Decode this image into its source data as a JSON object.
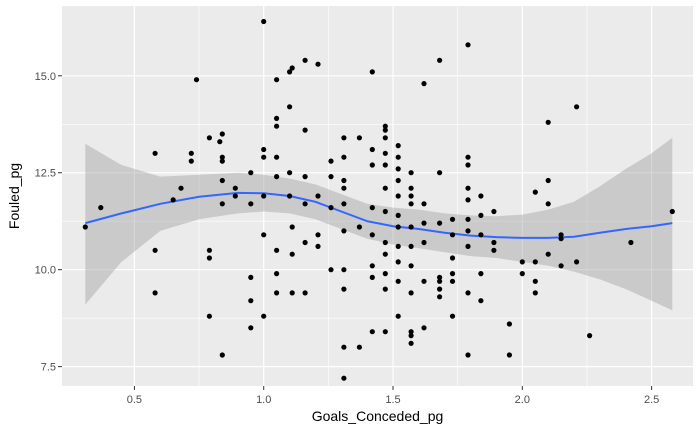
{
  "chart_data": {
    "type": "scatter",
    "title": "",
    "xlabel": "Goals_Conceded_pg",
    "ylabel": "Fouled_pg",
    "xlim": [
      0.22,
      2.66
    ],
    "ylim": [
      7.0,
      16.8
    ],
    "x_ticks": [
      0.5,
      1.0,
      1.5,
      2.0,
      2.5
    ],
    "x_tick_labels": [
      "0.5",
      "1.0",
      "1.5",
      "2.0",
      "2.5"
    ],
    "y_ticks": [
      7.5,
      10.0,
      12.5,
      15.0
    ],
    "y_tick_labels": [
      "7.5",
      "10.0",
      "12.5",
      "15.0"
    ],
    "grid": true,
    "theme": {
      "panel_background": "#ebebeb",
      "grid_major": "#ffffff",
      "point_color": "#000000",
      "smooth_line_color": "#3366ff",
      "ribbon_color": "#999999"
    },
    "series": [
      {
        "points": [
          [
            0.31,
            11.1
          ],
          [
            0.37,
            11.6
          ],
          [
            0.58,
            13.0
          ],
          [
            0.58,
            10.5
          ],
          [
            0.58,
            9.4
          ],
          [
            0.65,
            11.8
          ],
          [
            0.68,
            12.1
          ],
          [
            0.72,
            13.0
          ],
          [
            0.72,
            12.8
          ],
          [
            0.74,
            14.9
          ],
          [
            0.79,
            8.8
          ],
          [
            0.79,
            10.5
          ],
          [
            0.79,
            10.3
          ],
          [
            0.79,
            13.4
          ],
          [
            0.83,
            13.3
          ],
          [
            0.84,
            13.5
          ],
          [
            0.84,
            12.9
          ],
          [
            0.84,
            12.8
          ],
          [
            0.84,
            12.3
          ],
          [
            0.84,
            11.7
          ],
          [
            0.84,
            7.8
          ],
          [
            0.89,
            12.1
          ],
          [
            0.89,
            11.9
          ],
          [
            0.95,
            12.5
          ],
          [
            0.95,
            11.7
          ],
          [
            0.95,
            9.8
          ],
          [
            0.95,
            9.2
          ],
          [
            0.95,
            8.5
          ],
          [
            1.0,
            16.4
          ],
          [
            1.0,
            13.1
          ],
          [
            1.0,
            12.9
          ],
          [
            1.0,
            11.9
          ],
          [
            1.0,
            10.9
          ],
          [
            1.0,
            8.8
          ],
          [
            1.05,
            14.9
          ],
          [
            1.05,
            13.9
          ],
          [
            1.05,
            13.7
          ],
          [
            1.05,
            12.9
          ],
          [
            1.05,
            12.4
          ],
          [
            1.05,
            10.5
          ],
          [
            1.05,
            9.9
          ],
          [
            1.05,
            9.4
          ],
          [
            1.1,
            15.1
          ],
          [
            1.1,
            14.2
          ],
          [
            1.1,
            12.5
          ],
          [
            1.1,
            11.9
          ],
          [
            1.11,
            15.2
          ],
          [
            1.11,
            11.1
          ],
          [
            1.11,
            10.4
          ],
          [
            1.11,
            9.4
          ],
          [
            1.16,
            15.4
          ],
          [
            1.16,
            13.6
          ],
          [
            1.16,
            12.4
          ],
          [
            1.16,
            11.7
          ],
          [
            1.16,
            10.7
          ],
          [
            1.16,
            9.4
          ],
          [
            1.21,
            15.3
          ],
          [
            1.21,
            11.9
          ],
          [
            1.21,
            10.9
          ],
          [
            1.21,
            10.6
          ],
          [
            1.26,
            12.8
          ],
          [
            1.26,
            12.4
          ],
          [
            1.26,
            11.6
          ],
          [
            1.26,
            10.0
          ],
          [
            1.31,
            13.4
          ],
          [
            1.31,
            12.9
          ],
          [
            1.31,
            12.3
          ],
          [
            1.31,
            12.1
          ],
          [
            1.31,
            11.7
          ],
          [
            1.31,
            11.0
          ],
          [
            1.31,
            10.0
          ],
          [
            1.31,
            9.5
          ],
          [
            1.31,
            8.0
          ],
          [
            1.31,
            7.2
          ],
          [
            1.37,
            13.4
          ],
          [
            1.37,
            11.1
          ],
          [
            1.37,
            8.0
          ],
          [
            1.42,
            15.1
          ],
          [
            1.42,
            13.1
          ],
          [
            1.42,
            12.7
          ],
          [
            1.42,
            11.6
          ],
          [
            1.42,
            10.9
          ],
          [
            1.42,
            10.1
          ],
          [
            1.42,
            9.8
          ],
          [
            1.42,
            8.4
          ],
          [
            1.47,
            13.7
          ],
          [
            1.47,
            13.6
          ],
          [
            1.47,
            13.4
          ],
          [
            1.47,
            13.0
          ],
          [
            1.47,
            12.7
          ],
          [
            1.47,
            12.1
          ],
          [
            1.47,
            11.5
          ],
          [
            1.47,
            10.7
          ],
          [
            1.47,
            10.4
          ],
          [
            1.47,
            9.9
          ],
          [
            1.47,
            9.5
          ],
          [
            1.47,
            8.4
          ],
          [
            1.52,
            13.2
          ],
          [
            1.52,
            12.9
          ],
          [
            1.52,
            12.6
          ],
          [
            1.52,
            12.3
          ],
          [
            1.52,
            11.9
          ],
          [
            1.52,
            11.4
          ],
          [
            1.52,
            11.1
          ],
          [
            1.52,
            10.6
          ],
          [
            1.52,
            10.2
          ],
          [
            1.52,
            9.7
          ],
          [
            1.52,
            8.8
          ],
          [
            1.57,
            12.5
          ],
          [
            1.57,
            12.1
          ],
          [
            1.57,
            11.9
          ],
          [
            1.57,
            11.7
          ],
          [
            1.57,
            11.1
          ],
          [
            1.57,
            10.6
          ],
          [
            1.57,
            10.1
          ],
          [
            1.57,
            9.4
          ],
          [
            1.57,
            8.4
          ],
          [
            1.57,
            8.3
          ],
          [
            1.57,
            8.1
          ],
          [
            1.62,
            14.8
          ],
          [
            1.62,
            11.7
          ],
          [
            1.62,
            11.2
          ],
          [
            1.62,
            10.7
          ],
          [
            1.62,
            9.7
          ],
          [
            1.62,
            8.5
          ],
          [
            1.68,
            15.4
          ],
          [
            1.68,
            12.5
          ],
          [
            1.68,
            11.2
          ],
          [
            1.68,
            9.8
          ],
          [
            1.68,
            9.7
          ],
          [
            1.68,
            9.5
          ],
          [
            1.68,
            9.3
          ],
          [
            1.73,
            11.3
          ],
          [
            1.73,
            10.9
          ],
          [
            1.73,
            10.3
          ],
          [
            1.73,
            9.9
          ],
          [
            1.73,
            9.7
          ],
          [
            1.73,
            8.8
          ],
          [
            1.79,
            15.8
          ],
          [
            1.79,
            12.9
          ],
          [
            1.79,
            12.7
          ],
          [
            1.79,
            12.1
          ],
          [
            1.79,
            11.8
          ],
          [
            1.79,
            11.3
          ],
          [
            1.79,
            11.0
          ],
          [
            1.79,
            10.6
          ],
          [
            1.79,
            9.4
          ],
          [
            1.79,
            7.8
          ],
          [
            1.84,
            11.9
          ],
          [
            1.84,
            11.4
          ],
          [
            1.84,
            10.9
          ],
          [
            1.84,
            9.9
          ],
          [
            1.84,
            9.2
          ],
          [
            1.89,
            11.5
          ],
          [
            1.89,
            10.7
          ],
          [
            1.89,
            10.5
          ],
          [
            1.95,
            8.6
          ],
          [
            1.95,
            7.8
          ],
          [
            2.0,
            10.2
          ],
          [
            2.0,
            9.9
          ],
          [
            2.05,
            12.0
          ],
          [
            2.05,
            10.2
          ],
          [
            2.05,
            9.7
          ],
          [
            2.05,
            9.4
          ],
          [
            2.1,
            13.8
          ],
          [
            2.1,
            12.3
          ],
          [
            2.1,
            11.7
          ],
          [
            2.1,
            10.4
          ],
          [
            2.15,
            10.9
          ],
          [
            2.15,
            10.8
          ],
          [
            2.15,
            10.1
          ],
          [
            2.21,
            14.2
          ],
          [
            2.21,
            10.2
          ],
          [
            2.26,
            8.3
          ],
          [
            2.42,
            10.7
          ],
          [
            2.58,
            11.5
          ]
        ],
        "smooth": [
          [
            0.31,
            11.2
          ],
          [
            0.45,
            11.45
          ],
          [
            0.6,
            11.7
          ],
          [
            0.75,
            11.88
          ],
          [
            0.9,
            11.98
          ],
          [
            1.0,
            11.97
          ],
          [
            1.1,
            11.9
          ],
          [
            1.2,
            11.75
          ],
          [
            1.3,
            11.5
          ],
          [
            1.4,
            11.25
          ],
          [
            1.5,
            11.12
          ],
          [
            1.6,
            11.05
          ],
          [
            1.7,
            10.95
          ],
          [
            1.8,
            10.88
          ],
          [
            1.9,
            10.84
          ],
          [
            2.0,
            10.82
          ],
          [
            2.1,
            10.82
          ],
          [
            2.2,
            10.85
          ],
          [
            2.3,
            10.95
          ],
          [
            2.4,
            11.05
          ],
          [
            2.5,
            11.12
          ],
          [
            2.58,
            11.2
          ]
        ],
        "ribbon_lower": [
          [
            0.31,
            9.1
          ],
          [
            0.45,
            10.2
          ],
          [
            0.6,
            11.0
          ],
          [
            0.75,
            11.3
          ],
          [
            0.9,
            11.45
          ],
          [
            1.0,
            11.5
          ],
          [
            1.1,
            11.45
          ],
          [
            1.2,
            11.3
          ],
          [
            1.3,
            11.05
          ],
          [
            1.4,
            10.8
          ],
          [
            1.5,
            10.65
          ],
          [
            1.6,
            10.55
          ],
          [
            1.7,
            10.45
          ],
          [
            1.8,
            10.35
          ],
          [
            1.9,
            10.3
          ],
          [
            2.0,
            10.2
          ],
          [
            2.1,
            10.1
          ],
          [
            2.2,
            9.95
          ],
          [
            2.3,
            9.75
          ],
          [
            2.4,
            9.5
          ],
          [
            2.5,
            9.2
          ],
          [
            2.58,
            8.95
          ]
        ],
        "ribbon_upper": [
          [
            0.31,
            13.25
          ],
          [
            0.45,
            12.7
          ],
          [
            0.6,
            12.4
          ],
          [
            0.75,
            12.45
          ],
          [
            0.9,
            12.5
          ],
          [
            1.0,
            12.45
          ],
          [
            1.1,
            12.35
          ],
          [
            1.2,
            12.2
          ],
          [
            1.3,
            11.95
          ],
          [
            1.4,
            11.7
          ],
          [
            1.5,
            11.6
          ],
          [
            1.6,
            11.55
          ],
          [
            1.7,
            11.45
          ],
          [
            1.8,
            11.4
          ],
          [
            1.9,
            11.38
          ],
          [
            2.0,
            11.42
          ],
          [
            2.1,
            11.55
          ],
          [
            2.2,
            11.75
          ],
          [
            2.3,
            12.15
          ],
          [
            2.4,
            12.6
          ],
          [
            2.5,
            13.0
          ],
          [
            2.58,
            13.4
          ]
        ]
      }
    ]
  }
}
